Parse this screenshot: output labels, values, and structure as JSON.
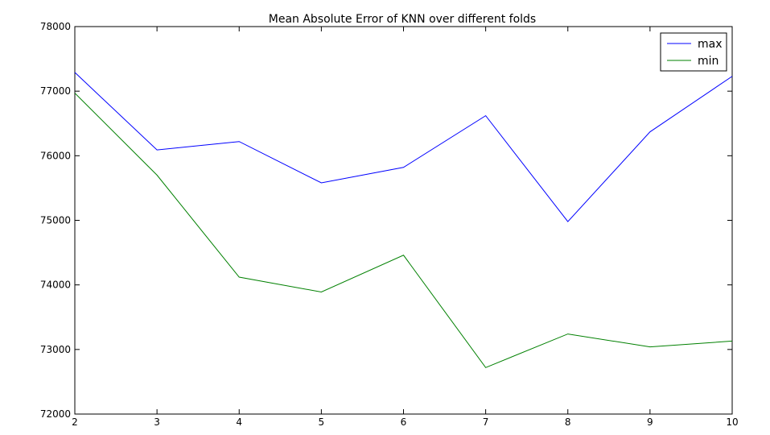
{
  "chart_data": {
    "type": "line",
    "title": "Mean Absolute Error of KNN over different folds",
    "xlabel": "",
    "ylabel": "",
    "x": [
      2,
      3,
      4,
      5,
      6,
      7,
      8,
      9,
      10
    ],
    "xlim": [
      2,
      10
    ],
    "ylim": [
      72000,
      78000
    ],
    "xticks": [
      "2",
      "3",
      "4",
      "5",
      "6",
      "7",
      "8",
      "9",
      "10"
    ],
    "yticks": [
      "72000",
      "73000",
      "74000",
      "75000",
      "76000",
      "77000",
      "78000"
    ],
    "grid": false,
    "legend_position": "top-right",
    "series": [
      {
        "name": "max",
        "color": "#0000ff",
        "values": [
          77290,
          76090,
          76220,
          75580,
          75820,
          76620,
          74980,
          76370,
          77230
        ]
      },
      {
        "name": "min",
        "color": "#008000",
        "values": [
          76970,
          75700,
          74120,
          73890,
          74460,
          72720,
          73240,
          73040,
          73130
        ]
      }
    ]
  }
}
